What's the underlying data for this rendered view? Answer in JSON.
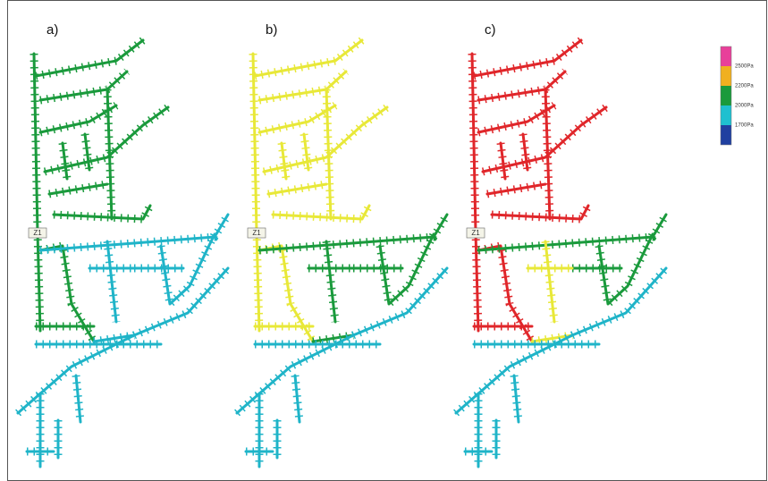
{
  "panels": [
    {
      "label": "a)",
      "node": "Z1",
      "colors": {
        "north": "#1a9a3c",
        "trunk": "#1a9a3c",
        "middle": "#1fb4c8",
        "middle_west": "#1fb4c8",
        "diagonal": "#1fb4c8"
      }
    },
    {
      "label": "b)",
      "node": "Z1",
      "colors": {
        "north": "#e8e838",
        "trunk": "#e8e838",
        "middle": "#1a9a3c",
        "middle_west": "#1a9a3c",
        "diagonal": "#1fb4c8"
      }
    },
    {
      "label": "c)",
      "node": "Z1",
      "colors": {
        "north": "#e0262a",
        "trunk": "#e0262a",
        "middle": "#1a9a3c",
        "middle_west": "#e8e838",
        "diagonal": "#1fb4c8"
      }
    }
  ],
  "legend": {
    "colors": [
      "#e8409a",
      "#f0b020",
      "#1a9a3c",
      "#1fc0d0",
      "#2040a0"
    ],
    "labels": [
      "2500Pa",
      "2200Pa",
      "2000Pa",
      "1700Pa"
    ]
  }
}
